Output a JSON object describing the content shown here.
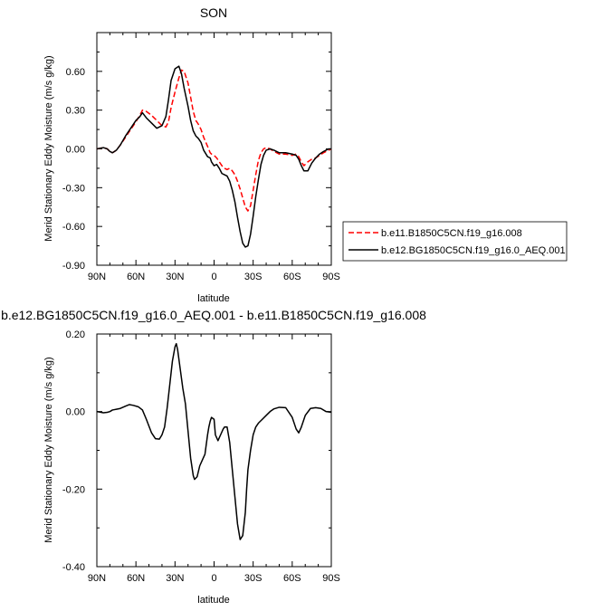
{
  "chart_data": [
    {
      "type": "line",
      "title": "SON",
      "xlabel": "latitude",
      "ylabel": "Merid Stationary Eddy Moisture (m/s g/kg)",
      "xlim": [
        90,
        -90
      ],
      "ylim": [
        -0.9,
        0.9
      ],
      "xticks": [
        90,
        60,
        30,
        0,
        -30,
        -60,
        -90
      ],
      "xtick_labels": [
        "90N",
        "60N",
        "30N",
        "0",
        "30S",
        "60S",
        "90S"
      ],
      "yticks": [
        0.6,
        0.3,
        0.0,
        -0.3,
        -0.6,
        -0.9
      ],
      "ytick_labels": [
        "0.60",
        "0.30",
        "0.00",
        "-0.30",
        "-0.60",
        "-0.90"
      ],
      "legend": "outside-right",
      "series": [
        {
          "name": "b.e11.B1850C5CN.f19_g16.008",
          "color": "#ff0000",
          "dash": "dashed",
          "x": [
            90,
            85,
            82,
            80,
            78,
            75,
            72,
            68,
            64,
            60,
            57,
            55,
            52,
            48,
            44,
            40,
            37,
            35,
            33,
            30,
            27,
            25,
            23,
            20,
            18,
            16,
            14,
            12,
            10,
            8,
            5,
            3,
            2,
            0,
            -2,
            -4,
            -6,
            -8,
            -10,
            -12,
            -14,
            -16,
            -18,
            -20,
            -22,
            -24,
            -26,
            -28,
            -30,
            -32,
            -34,
            -36,
            -38,
            -40,
            -43,
            -46,
            -50,
            -55,
            -60,
            -63,
            -65,
            -67,
            -69,
            -72,
            -75,
            -78,
            -81,
            -84,
            -86,
            -88,
            -90
          ],
          "y": [
            0.0,
            0.01,
            0.0,
            -0.02,
            -0.03,
            -0.01,
            0.03,
            0.09,
            0.15,
            0.21,
            0.26,
            0.3,
            0.29,
            0.26,
            0.22,
            0.18,
            0.17,
            0.21,
            0.32,
            0.44,
            0.55,
            0.61,
            0.6,
            0.51,
            0.4,
            0.29,
            0.22,
            0.19,
            0.15,
            0.09,
            0.02,
            -0.03,
            -0.04,
            -0.05,
            -0.07,
            -0.1,
            -0.13,
            -0.15,
            -0.16,
            -0.15,
            -0.17,
            -0.2,
            -0.25,
            -0.31,
            -0.38,
            -0.45,
            -0.48,
            -0.44,
            -0.32,
            -0.2,
            -0.09,
            -0.03,
            0.0,
            0.01,
            0.0,
            -0.02,
            -0.04,
            -0.04,
            -0.05,
            -0.04,
            -0.06,
            -0.1,
            -0.13,
            -0.1,
            -0.08,
            -0.07,
            -0.05,
            -0.03,
            -0.02,
            -0.01,
            0.0
          ]
        },
        {
          "name": "b.e12.BG1850C5CN.f19_g16.0_AEQ.001",
          "color": "#000000",
          "dash": "solid",
          "x": [
            90,
            85,
            82,
            80,
            78,
            75,
            72,
            68,
            64,
            60,
            57,
            55,
            52,
            48,
            44,
            40,
            37,
            35,
            33,
            30,
            27,
            25,
            23,
            20,
            18,
            16,
            14,
            12,
            10,
            8,
            5,
            3,
            2,
            0,
            -2,
            -4,
            -6,
            -8,
            -10,
            -12,
            -14,
            -16,
            -18,
            -20,
            -22,
            -24,
            -26,
            -28,
            -30,
            -32,
            -34,
            -36,
            -38,
            -40,
            -43,
            -46,
            -50,
            -55,
            -60,
            -63,
            -65,
            -67,
            -69,
            -72,
            -75,
            -78,
            -81,
            -84,
            -86,
            -88,
            -90
          ],
          "y": [
            0.0,
            0.01,
            0.0,
            -0.02,
            -0.03,
            -0.01,
            0.03,
            0.1,
            0.16,
            0.22,
            0.25,
            0.28,
            0.24,
            0.2,
            0.16,
            0.18,
            0.25,
            0.38,
            0.53,
            0.62,
            0.64,
            0.58,
            0.47,
            0.33,
            0.22,
            0.14,
            0.1,
            0.08,
            0.05,
            -0.01,
            -0.06,
            -0.07,
            -0.1,
            -0.13,
            -0.12,
            -0.15,
            -0.19,
            -0.2,
            -0.21,
            -0.25,
            -0.32,
            -0.41,
            -0.53,
            -0.64,
            -0.73,
            -0.76,
            -0.75,
            -0.66,
            -0.52,
            -0.37,
            -0.24,
            -0.12,
            -0.05,
            -0.01,
            0.0,
            -0.01,
            -0.03,
            -0.03,
            -0.04,
            -0.05,
            -0.08,
            -0.13,
            -0.17,
            -0.17,
            -0.11,
            -0.07,
            -0.04,
            -0.02,
            -0.01,
            0.0,
            0.0
          ]
        }
      ]
    },
    {
      "type": "line",
      "title": "b.e12.BG1850C5CN.f19_g16.0_AEQ.001 - b.e11.B1850C5CN.f19_g16.008",
      "xlabel": "latitude",
      "ylabel": "Merid Stationary Eddy Moisture (m/s g/kg)",
      "xlim": [
        90,
        -90
      ],
      "ylim": [
        -0.4,
        0.2
      ],
      "xticks": [
        90,
        60,
        30,
        0,
        -30,
        -60,
        -90
      ],
      "xtick_labels": [
        "90N",
        "60N",
        "30N",
        "0",
        "30S",
        "60S",
        "90S"
      ],
      "yticks": [
        0.2,
        0.0,
        -0.2,
        -0.4
      ],
      "ytick_labels": [
        "0.20",
        "0.00",
        "-0.20",
        "-0.40"
      ],
      "series": [
        {
          "color": "#000000",
          "dash": "solid",
          "x": [
            90,
            85,
            82,
            80,
            78,
            75,
            72,
            68,
            65,
            62,
            58,
            55,
            52,
            48,
            45,
            42,
            40,
            38,
            36,
            34,
            32,
            30,
            29,
            28,
            26,
            24,
            22,
            20,
            18,
            16,
            15,
            13,
            11,
            9,
            7,
            5,
            4,
            3,
            2,
            0,
            -1,
            -3,
            -5,
            -7,
            -8,
            -10,
            -12,
            -14,
            -16,
            -18,
            -20,
            -22,
            -24,
            -25,
            -26,
            -28,
            -30,
            -32,
            -34,
            -37,
            -40,
            -43,
            -46,
            -50,
            -55,
            -60,
            -63,
            -65,
            -67,
            -70,
            -74,
            -78,
            -82,
            -86,
            -90
          ],
          "y": [
            0.0,
            -0.003,
            -0.002,
            0.0,
            0.004,
            0.006,
            0.008,
            0.014,
            0.018,
            0.016,
            0.012,
            0.004,
            -0.02,
            -0.055,
            -0.07,
            -0.071,
            -0.06,
            -0.04,
            0.01,
            0.07,
            0.13,
            0.167,
            0.175,
            0.16,
            0.11,
            0.06,
            0.02,
            -0.05,
            -0.12,
            -0.165,
            -0.175,
            -0.168,
            -0.14,
            -0.125,
            -0.11,
            -0.06,
            -0.04,
            -0.025,
            -0.015,
            -0.02,
            -0.06,
            -0.075,
            -0.06,
            -0.045,
            -0.04,
            -0.04,
            -0.08,
            -0.15,
            -0.22,
            -0.29,
            -0.33,
            -0.32,
            -0.26,
            -0.2,
            -0.15,
            -0.1,
            -0.06,
            -0.04,
            -0.03,
            -0.02,
            -0.01,
            0.0,
            0.007,
            0.011,
            0.01,
            -0.015,
            -0.045,
            -0.055,
            -0.04,
            -0.01,
            0.008,
            0.01,
            0.008,
            0.0,
            -0.002
          ]
        }
      ]
    }
  ]
}
